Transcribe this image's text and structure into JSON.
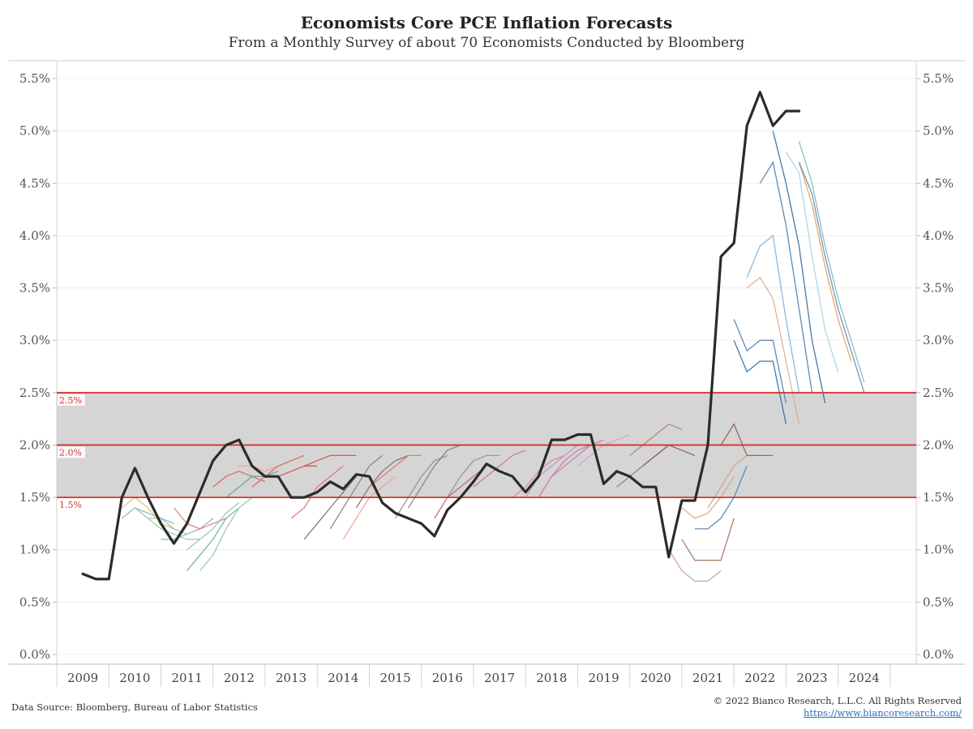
{
  "header": {
    "title": "Economists Core PCE Inflation Forecasts",
    "subtitle": "From a Monthly Survey of about 70 Economists Conducted by Bloomberg"
  },
  "footer": {
    "source": "Data Source: Bloomberg, Bureau of Labor Statistics",
    "copyright": "© 2022 Bianco Research, L.L.C. All Rights Reserved",
    "website": "https://www.biancoresearch.com/"
  },
  "chart_data": {
    "type": "line",
    "title": "Economists Core PCE Inflation Forecasts",
    "subtitle": "From a Monthly Survey of about 70 Economists Conducted by Bloomberg",
    "xlim": [
      2008.5,
      2025.0
    ],
    "ylim": [
      0.0,
      5.6
    ],
    "x_ticks": [
      "2009",
      "2010",
      "2011",
      "2012",
      "2013",
      "2014",
      "2015",
      "2016",
      "2017",
      "2018",
      "2019",
      "2020",
      "2021",
      "2022",
      "2023",
      "2024"
    ],
    "y_ticks": [
      "0.0%",
      "0.5%",
      "1.0%",
      "1.5%",
      "2.0%",
      "2.5%",
      "3.0%",
      "3.5%",
      "4.0%",
      "4.5%",
      "5.0%",
      "5.5%"
    ],
    "y_tick_values": [
      0.0,
      0.5,
      1.0,
      1.5,
      2.0,
      2.5,
      3.0,
      3.5,
      4.0,
      4.5,
      5.0,
      5.5
    ],
    "target_band": {
      "low": 1.5,
      "high": 2.5,
      "fill": "#d5d5d5"
    },
    "reference_lines": [
      {
        "value": 2.5,
        "label": "2.5%",
        "color": "#d9342b"
      },
      {
        "value": 2.0,
        "label": "2.0%",
        "color": "#d9342b"
      },
      {
        "value": 1.5,
        "label": "1.5%",
        "color": "#d9342b"
      }
    ],
    "grid": true,
    "actual": {
      "color": "#2b2b2b",
      "x": [
        2009.0,
        2009.25,
        2009.5,
        2009.75,
        2010.0,
        2010.25,
        2010.5,
        2010.75,
        2011.0,
        2011.25,
        2011.5,
        2011.75,
        2012.0,
        2012.25,
        2012.5,
        2012.75,
        2013.0,
        2013.25,
        2013.5,
        2013.75,
        2014.0,
        2014.25,
        2014.5,
        2014.75,
        2015.0,
        2015.25,
        2015.5,
        2015.75,
        2016.0,
        2016.25,
        2016.5,
        2016.75,
        2017.0,
        2017.25,
        2017.5,
        2017.75,
        2018.0,
        2018.25,
        2018.5,
        2018.75,
        2019.0,
        2019.25,
        2019.5,
        2019.75,
        2020.0,
        2020.25,
        2020.5,
        2020.75,
        2021.0,
        2021.25,
        2021.5,
        2021.75,
        2022.0,
        2022.25,
        2022.5,
        2022.75
      ],
      "y": [
        0.77,
        0.72,
        0.72,
        1.5,
        1.78,
        1.5,
        1.25,
        1.06,
        1.25,
        1.55,
        1.85,
        2.0,
        2.05,
        1.8,
        1.7,
        1.7,
        1.5,
        1.5,
        1.55,
        1.65,
        1.58,
        1.72,
        1.7,
        1.45,
        1.35,
        1.3,
        1.25,
        1.13,
        1.38,
        1.5,
        1.65,
        1.82,
        1.75,
        1.7,
        1.55,
        1.7,
        2.05,
        2.05,
        2.1,
        2.1,
        1.63,
        1.75,
        1.7,
        1.6,
        1.6,
        0.93,
        1.47,
        1.47,
        2.0,
        3.8,
        3.93,
        5.05,
        5.37,
        5.05,
        5.19,
        5.19
      ]
    },
    "forecasts": [
      {
        "color": "#7fb9b0",
        "x": [
          2009.75,
          2010.0,
          2010.25,
          2010.5,
          2010.75
        ],
        "y": [
          1.3,
          1.4,
          1.35,
          1.3,
          1.25
        ]
      },
      {
        "color": "#d8c060",
        "x": [
          2009.75,
          2010.0,
          2010.25,
          2010.5,
          2010.75
        ],
        "y": [
          1.4,
          1.5,
          1.4,
          1.25,
          1.2
        ]
      },
      {
        "color": "#8fc0c8",
        "x": [
          2010.0,
          2010.25,
          2010.5,
          2010.75,
          2011.0
        ],
        "y": [
          1.4,
          1.3,
          1.3,
          1.2,
          1.15
        ]
      },
      {
        "color": "#a0c8a0",
        "x": [
          2010.25,
          2010.5,
          2010.75,
          2011.0,
          2011.25
        ],
        "y": [
          1.3,
          1.2,
          1.15,
          1.1,
          1.1
        ]
      },
      {
        "color": "#7fb9b0",
        "x": [
          2010.5,
          2010.75,
          2011.0,
          2011.25,
          2011.5
        ],
        "y": [
          1.1,
          1.1,
          1.15,
          1.2,
          1.3
        ]
      },
      {
        "color": "#e08070",
        "x": [
          2010.75,
          2011.0,
          2011.25,
          2011.5,
          2011.75
        ],
        "y": [
          1.4,
          1.25,
          1.2,
          1.25,
          1.3
        ]
      },
      {
        "color": "#6aa8a0",
        "x": [
          2011.0,
          2011.25,
          2011.5,
          2011.75,
          2012.0
        ],
        "y": [
          0.8,
          0.95,
          1.1,
          1.3,
          1.4
        ]
      },
      {
        "color": "#8fc0c8",
        "x": [
          2011.0,
          2011.25,
          2011.5,
          2011.75,
          2012.0
        ],
        "y": [
          1.0,
          1.1,
          1.2,
          1.35,
          1.45
        ]
      },
      {
        "color": "#90c898",
        "x": [
          2011.25,
          2011.5,
          2011.75,
          2012.0,
          2012.25
        ],
        "y": [
          0.8,
          0.95,
          1.2,
          1.4,
          1.5
        ]
      },
      {
        "color": "#e06050",
        "x": [
          2011.5,
          2011.75,
          2012.0,
          2012.25,
          2012.5
        ],
        "y": [
          1.6,
          1.7,
          1.75,
          1.7,
          1.65
        ]
      },
      {
        "color": "#60a098",
        "x": [
          2011.75,
          2012.0,
          2012.25,
          2012.5,
          2012.75
        ],
        "y": [
          1.5,
          1.6,
          1.7,
          1.7,
          1.75
        ]
      },
      {
        "color": "#f0a090",
        "x": [
          2012.0,
          2012.25,
          2012.5,
          2012.75,
          2013.0
        ],
        "y": [
          1.8,
          1.8,
          1.75,
          1.8,
          1.85
        ]
      },
      {
        "color": "#e06050",
        "x": [
          2012.25,
          2012.5,
          2012.75,
          2013.0,
          2013.25
        ],
        "y": [
          1.6,
          1.7,
          1.8,
          1.85,
          1.9
        ]
      },
      {
        "color": "#d05040",
        "x": [
          2012.5,
          2012.75,
          2013.0,
          2013.25,
          2013.5
        ],
        "y": [
          1.7,
          1.7,
          1.75,
          1.8,
          1.8
        ]
      },
      {
        "color": "#e07060",
        "x": [
          2013.0,
          2013.25,
          2013.5,
          2013.75,
          2014.0
        ],
        "y": [
          1.3,
          1.4,
          1.6,
          1.7,
          1.8
        ]
      },
      {
        "color": "#707070",
        "x": [
          2013.25,
          2013.5,
          2013.75,
          2014.0,
          2014.25
        ],
        "y": [
          1.1,
          1.25,
          1.4,
          1.55,
          1.7
        ]
      },
      {
        "color": "#d05040",
        "x": [
          2013.25,
          2013.5,
          2013.75,
          2014.0,
          2014.25
        ],
        "y": [
          1.8,
          1.85,
          1.9,
          1.9,
          1.9
        ]
      },
      {
        "color": "#808080",
        "x": [
          2013.75,
          2014.0,
          2014.25,
          2014.5,
          2014.75
        ],
        "y": [
          1.2,
          1.4,
          1.6,
          1.8,
          1.9
        ]
      },
      {
        "color": "#f0a090",
        "x": [
          2014.0,
          2014.25,
          2014.5,
          2014.75,
          2015.0
        ],
        "y": [
          1.1,
          1.3,
          1.5,
          1.6,
          1.7
        ]
      },
      {
        "color": "#707070",
        "x": [
          2014.25,
          2014.5,
          2014.75,
          2015.0,
          2015.25
        ],
        "y": [
          1.4,
          1.6,
          1.75,
          1.85,
          1.9
        ]
      },
      {
        "color": "#e07060",
        "x": [
          2014.5,
          2014.75,
          2015.0,
          2015.25,
          2015.5
        ],
        "y": [
          1.6,
          1.7,
          1.8,
          1.9,
          1.9
        ]
      },
      {
        "color": "#909090",
        "x": [
          2015.0,
          2015.25,
          2015.5,
          2015.75,
          2016.0
        ],
        "y": [
          1.3,
          1.5,
          1.7,
          1.85,
          1.9
        ]
      },
      {
        "color": "#808080",
        "x": [
          2015.25,
          2015.5,
          2015.75,
          2016.0,
          2016.25
        ],
        "y": [
          1.4,
          1.6,
          1.8,
          1.95,
          2.0
        ]
      },
      {
        "color": "#c06080",
        "x": [
          2015.75,
          2016.0,
          2016.25,
          2016.5,
          2016.75
        ],
        "y": [
          1.3,
          1.5,
          1.6,
          1.7,
          1.8
        ]
      },
      {
        "color": "#909090",
        "x": [
          2016.0,
          2016.25,
          2016.5,
          2016.75,
          2017.0
        ],
        "y": [
          1.5,
          1.7,
          1.85,
          1.9,
          1.9
        ]
      },
      {
        "color": "#d07090",
        "x": [
          2016.5,
          2016.75,
          2017.0,
          2017.25,
          2017.5
        ],
        "y": [
          1.6,
          1.7,
          1.8,
          1.9,
          1.95
        ]
      },
      {
        "color": "#e080a0",
        "x": [
          2017.25,
          2017.5,
          2017.75,
          2018.0,
          2018.25
        ],
        "y": [
          1.5,
          1.6,
          1.75,
          1.85,
          1.9
        ]
      },
      {
        "color": "#c090c0",
        "x": [
          2017.5,
          2017.75,
          2018.0,
          2018.25,
          2018.5
        ],
        "y": [
          1.5,
          1.7,
          1.8,
          1.9,
          2.0
        ]
      },
      {
        "color": "#d070a0",
        "x": [
          2017.75,
          2018.0,
          2018.25,
          2018.5,
          2018.75
        ],
        "y": [
          1.5,
          1.7,
          1.85,
          1.95,
          2.0
        ]
      },
      {
        "color": "#b080c0",
        "x": [
          2018.0,
          2018.25,
          2018.5,
          2018.75,
          2019.0
        ],
        "y": [
          1.7,
          1.8,
          1.9,
          2.0,
          2.05
        ]
      },
      {
        "color": "#e0a0c0",
        "x": [
          2018.5,
          2018.75,
          2019.0,
          2019.25,
          2019.5
        ],
        "y": [
          1.8,
          1.9,
          2.0,
          2.05,
          2.1
        ]
      },
      {
        "color": "#a07060",
        "x": [
          2019.25,
          2019.5,
          2019.75,
          2020.0,
          2020.25
        ],
        "y": [
          1.6,
          1.7,
          1.8,
          1.9,
          2.0
        ]
      },
      {
        "color": "#b08070",
        "x": [
          2019.5,
          2019.75,
          2020.0,
          2020.25,
          2020.5
        ],
        "y": [
          1.9,
          2.0,
          2.1,
          2.2,
          2.15
        ]
      },
      {
        "color": "#906050",
        "x": [
          2019.75,
          2020.0,
          2020.25,
          2020.5,
          2020.75
        ],
        "y": [
          1.8,
          1.9,
          2.0,
          1.95,
          1.9
        ]
      },
      {
        "color": "#c4a090",
        "x": [
          2020.25,
          2020.5,
          2020.75,
          2021.0,
          2021.25
        ],
        "y": [
          1.0,
          0.8,
          0.7,
          0.7,
          0.8
        ]
      },
      {
        "color": "#a07060",
        "x": [
          2020.5,
          2020.75,
          2021.0,
          2021.25,
          2021.5
        ],
        "y": [
          1.1,
          0.9,
          0.9,
          0.9,
          1.3
        ]
      },
      {
        "color": "#e0a080",
        "x": [
          2020.5,
          2020.75,
          2021.0,
          2021.25,
          2021.5
        ],
        "y": [
          1.4,
          1.3,
          1.35,
          1.5,
          1.7
        ]
      },
      {
        "color": "#4a80b0",
        "x": [
          2020.75,
          2021.0,
          2021.25,
          2021.5,
          2021.75
        ],
        "y": [
          1.2,
          1.2,
          1.3,
          1.5,
          1.8
        ]
      },
      {
        "color": "#c8a090",
        "x": [
          2021.0,
          2021.25,
          2021.5,
          2021.75,
          2022.0
        ],
        "y": [
          1.4,
          1.6,
          1.8,
          1.9,
          1.9
        ]
      },
      {
        "color": "#906050",
        "x": [
          2021.25,
          2021.5,
          2021.75,
          2022.0,
          2022.25
        ],
        "y": [
          2.0,
          2.2,
          1.9,
          1.9,
          1.9
        ]
      },
      {
        "color": "#4a80b0",
        "x": [
          2021.5,
          2021.75,
          2022.0,
          2022.25,
          2022.5
        ],
        "y": [
          3.2,
          2.9,
          3.0,
          3.0,
          2.4
        ]
      },
      {
        "color": "#2e6aa0",
        "x": [
          2021.5,
          2021.75,
          2022.0,
          2022.25,
          2022.5
        ],
        "y": [
          3.0,
          2.7,
          2.8,
          2.8,
          2.2
        ]
      },
      {
        "color": "#7fb0d8",
        "x": [
          2021.75,
          2022.0,
          2022.25,
          2022.5,
          2022.75
        ],
        "y": [
          3.6,
          3.9,
          4.0,
          3.2,
          2.5
        ]
      },
      {
        "color": "#e0a890",
        "x": [
          2021.75,
          2022.0,
          2022.25,
          2022.5,
          2022.75
        ],
        "y": [
          3.5,
          3.6,
          3.4,
          2.8,
          2.2
        ]
      },
      {
        "color": "#4a80b0",
        "x": [
          2022.0,
          2022.25,
          2022.5,
          2022.75,
          2023.0
        ],
        "y": [
          4.5,
          4.7,
          4.1,
          3.3,
          2.5
        ]
      },
      {
        "color": "#2e6aa0",
        "x": [
          2022.25,
          2022.5,
          2022.75,
          2023.0,
          2023.25
        ],
        "y": [
          5.0,
          4.5,
          3.9,
          3.0,
          2.4
        ]
      },
      {
        "color": "#a8d0e8",
        "x": [
          2022.5,
          2022.75,
          2023.0,
          2023.25,
          2023.5
        ],
        "y": [
          4.8,
          4.6,
          3.8,
          3.1,
          2.7
        ]
      },
      {
        "color": "#e8a050",
        "x": [
          2022.75,
          2023.0,
          2023.25,
          2023.5,
          2023.75
        ],
        "y": [
          4.7,
          4.3,
          3.7,
          3.2,
          2.8
        ]
      },
      {
        "color": "#7fb9b0",
        "x": [
          2022.75,
          2023.0,
          2023.25,
          2023.5,
          2023.75,
          2024.0
        ],
        "y": [
          4.9,
          4.5,
          3.9,
          3.4,
          3.0,
          2.6
        ]
      },
      {
        "color": "#5a90c0",
        "x": [
          2022.75,
          2023.0,
          2023.25,
          2023.5,
          2023.75,
          2024.0
        ],
        "y": [
          4.7,
          4.4,
          3.8,
          3.3,
          2.9,
          2.5
        ]
      }
    ]
  }
}
